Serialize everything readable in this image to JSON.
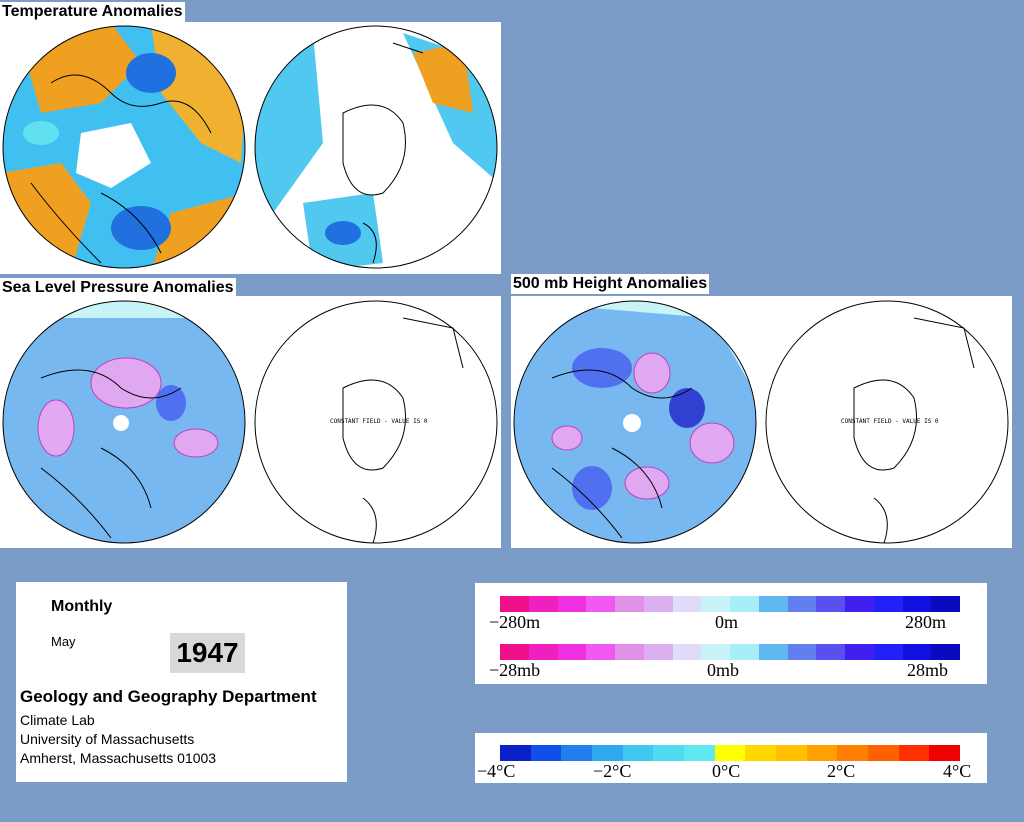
{
  "titles": {
    "temperature": "Temperature Anomalies",
    "slp": "Sea Level Pressure Anomalies",
    "height500": "500 mb Height Anomalies"
  },
  "map_annotations": {
    "constant_field": "CONSTANT FIELD - VALUE IS 0"
  },
  "info": {
    "period": "Monthly",
    "month": "May",
    "year": "1947",
    "department": "Geology and Geography Department",
    "lab": "Climate Lab",
    "university": "University of Massachusetts",
    "address": "Amherst, Massachusetts 01003"
  },
  "legend_height": {
    "labels": [
      "−280m",
      "0m",
      "280m"
    ],
    "colors": [
      "#f0108c",
      "#f020c0",
      "#f030e0",
      "#f058f0",
      "#e090e8",
      "#dcb0f0",
      "#e0dcf8",
      "#c8f4f8",
      "#a8eef8",
      "#60b8f0",
      "#6080f0",
      "#5a50f0",
      "#4020f0",
      "#2020f8",
      "#1010e0",
      "#0a0ac0"
    ]
  },
  "legend_pressure": {
    "labels": [
      "−28mb",
      "0mb",
      "28mb"
    ],
    "colors": [
      "#f0108c",
      "#f020c0",
      "#f030e0",
      "#f058f0",
      "#e090e8",
      "#dcb0f0",
      "#e0dcf8",
      "#c8f4f8",
      "#a8eef8",
      "#60b8f0",
      "#6080f0",
      "#5a50f0",
      "#4020f0",
      "#2020f8",
      "#1010e0",
      "#0a0ac0"
    ]
  },
  "legend_temperature": {
    "labels": [
      "−4°C",
      "−2°C",
      "0°C",
      "2°C",
      "4°C"
    ],
    "colors": [
      "#0a20c8",
      "#1050e8",
      "#2080f0",
      "#30a8f0",
      "#40c8f0",
      "#50dcf0",
      "#60e8f0",
      "#ffff00",
      "#ffd800",
      "#ffc000",
      "#ffa000",
      "#ff8000",
      "#ff6000",
      "#ff3000",
      "#f00000"
    ]
  },
  "colors": {
    "background": "#7b9cc6",
    "ocean_light": "#c8f4f8",
    "blue": "#3aa0f0",
    "orange": "#f0a020",
    "pink": "#f0a0f0"
  }
}
